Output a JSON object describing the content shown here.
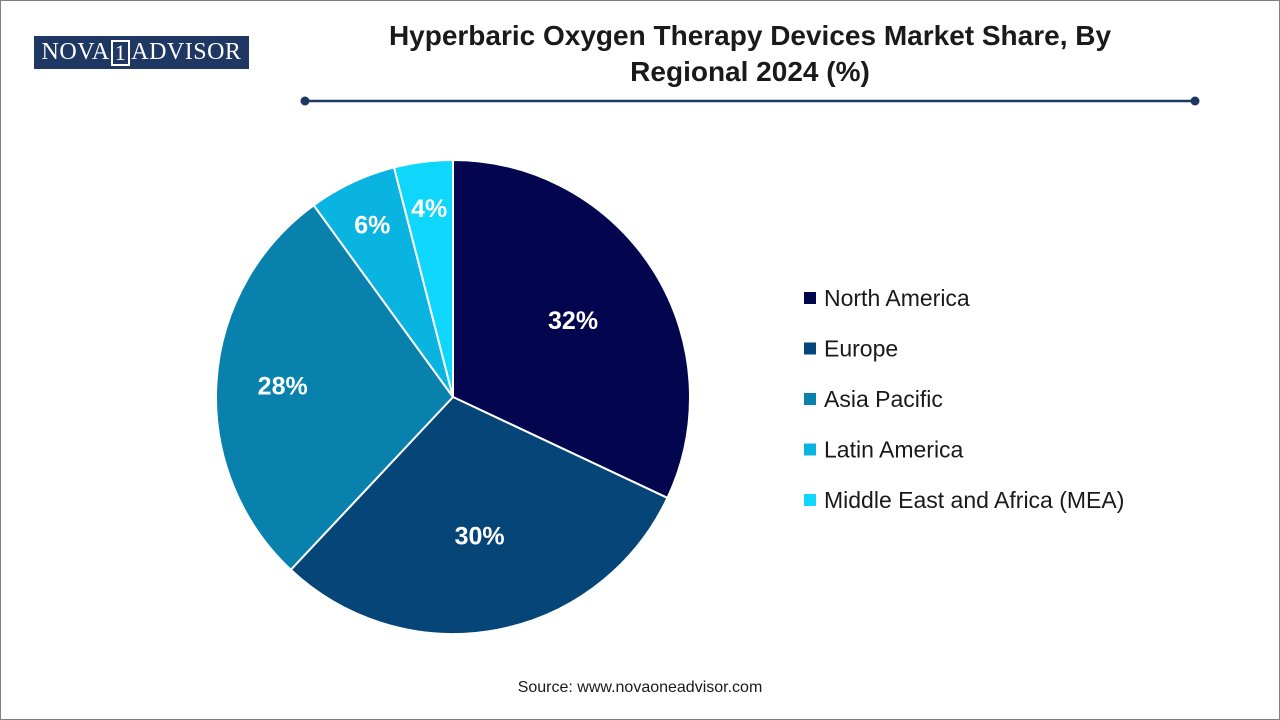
{
  "logo": {
    "left": "NOVA",
    "one": "1",
    "right": "ADVISOR"
  },
  "title_line1": "Hyperbaric Oxygen Therapy Devices Market Share, By",
  "title_line2": "Regional 2024 (%)",
  "source": "Source: www.novaoneadvisor.com",
  "colors": {
    "title_rule": "#1f3763",
    "logo_bg": "#1f3763"
  },
  "chart_data": {
    "type": "pie",
    "title": "Hyperbaric Oxygen Therapy Devices Market Share, By Regional 2024 (%)",
    "legend_position": "right",
    "categories": [
      "North America",
      "Europe",
      "Asia Pacific",
      "Latin America",
      "Middle East and Africa (MEA)"
    ],
    "values": [
      32,
      30,
      28,
      6,
      4
    ],
    "labels": [
      "32%",
      "30%",
      "28%",
      "6%",
      "4%"
    ],
    "colors": [
      "#03064f",
      "#064577",
      "#0881ad",
      "#0ab4e1",
      "#0fd6fb"
    ]
  }
}
